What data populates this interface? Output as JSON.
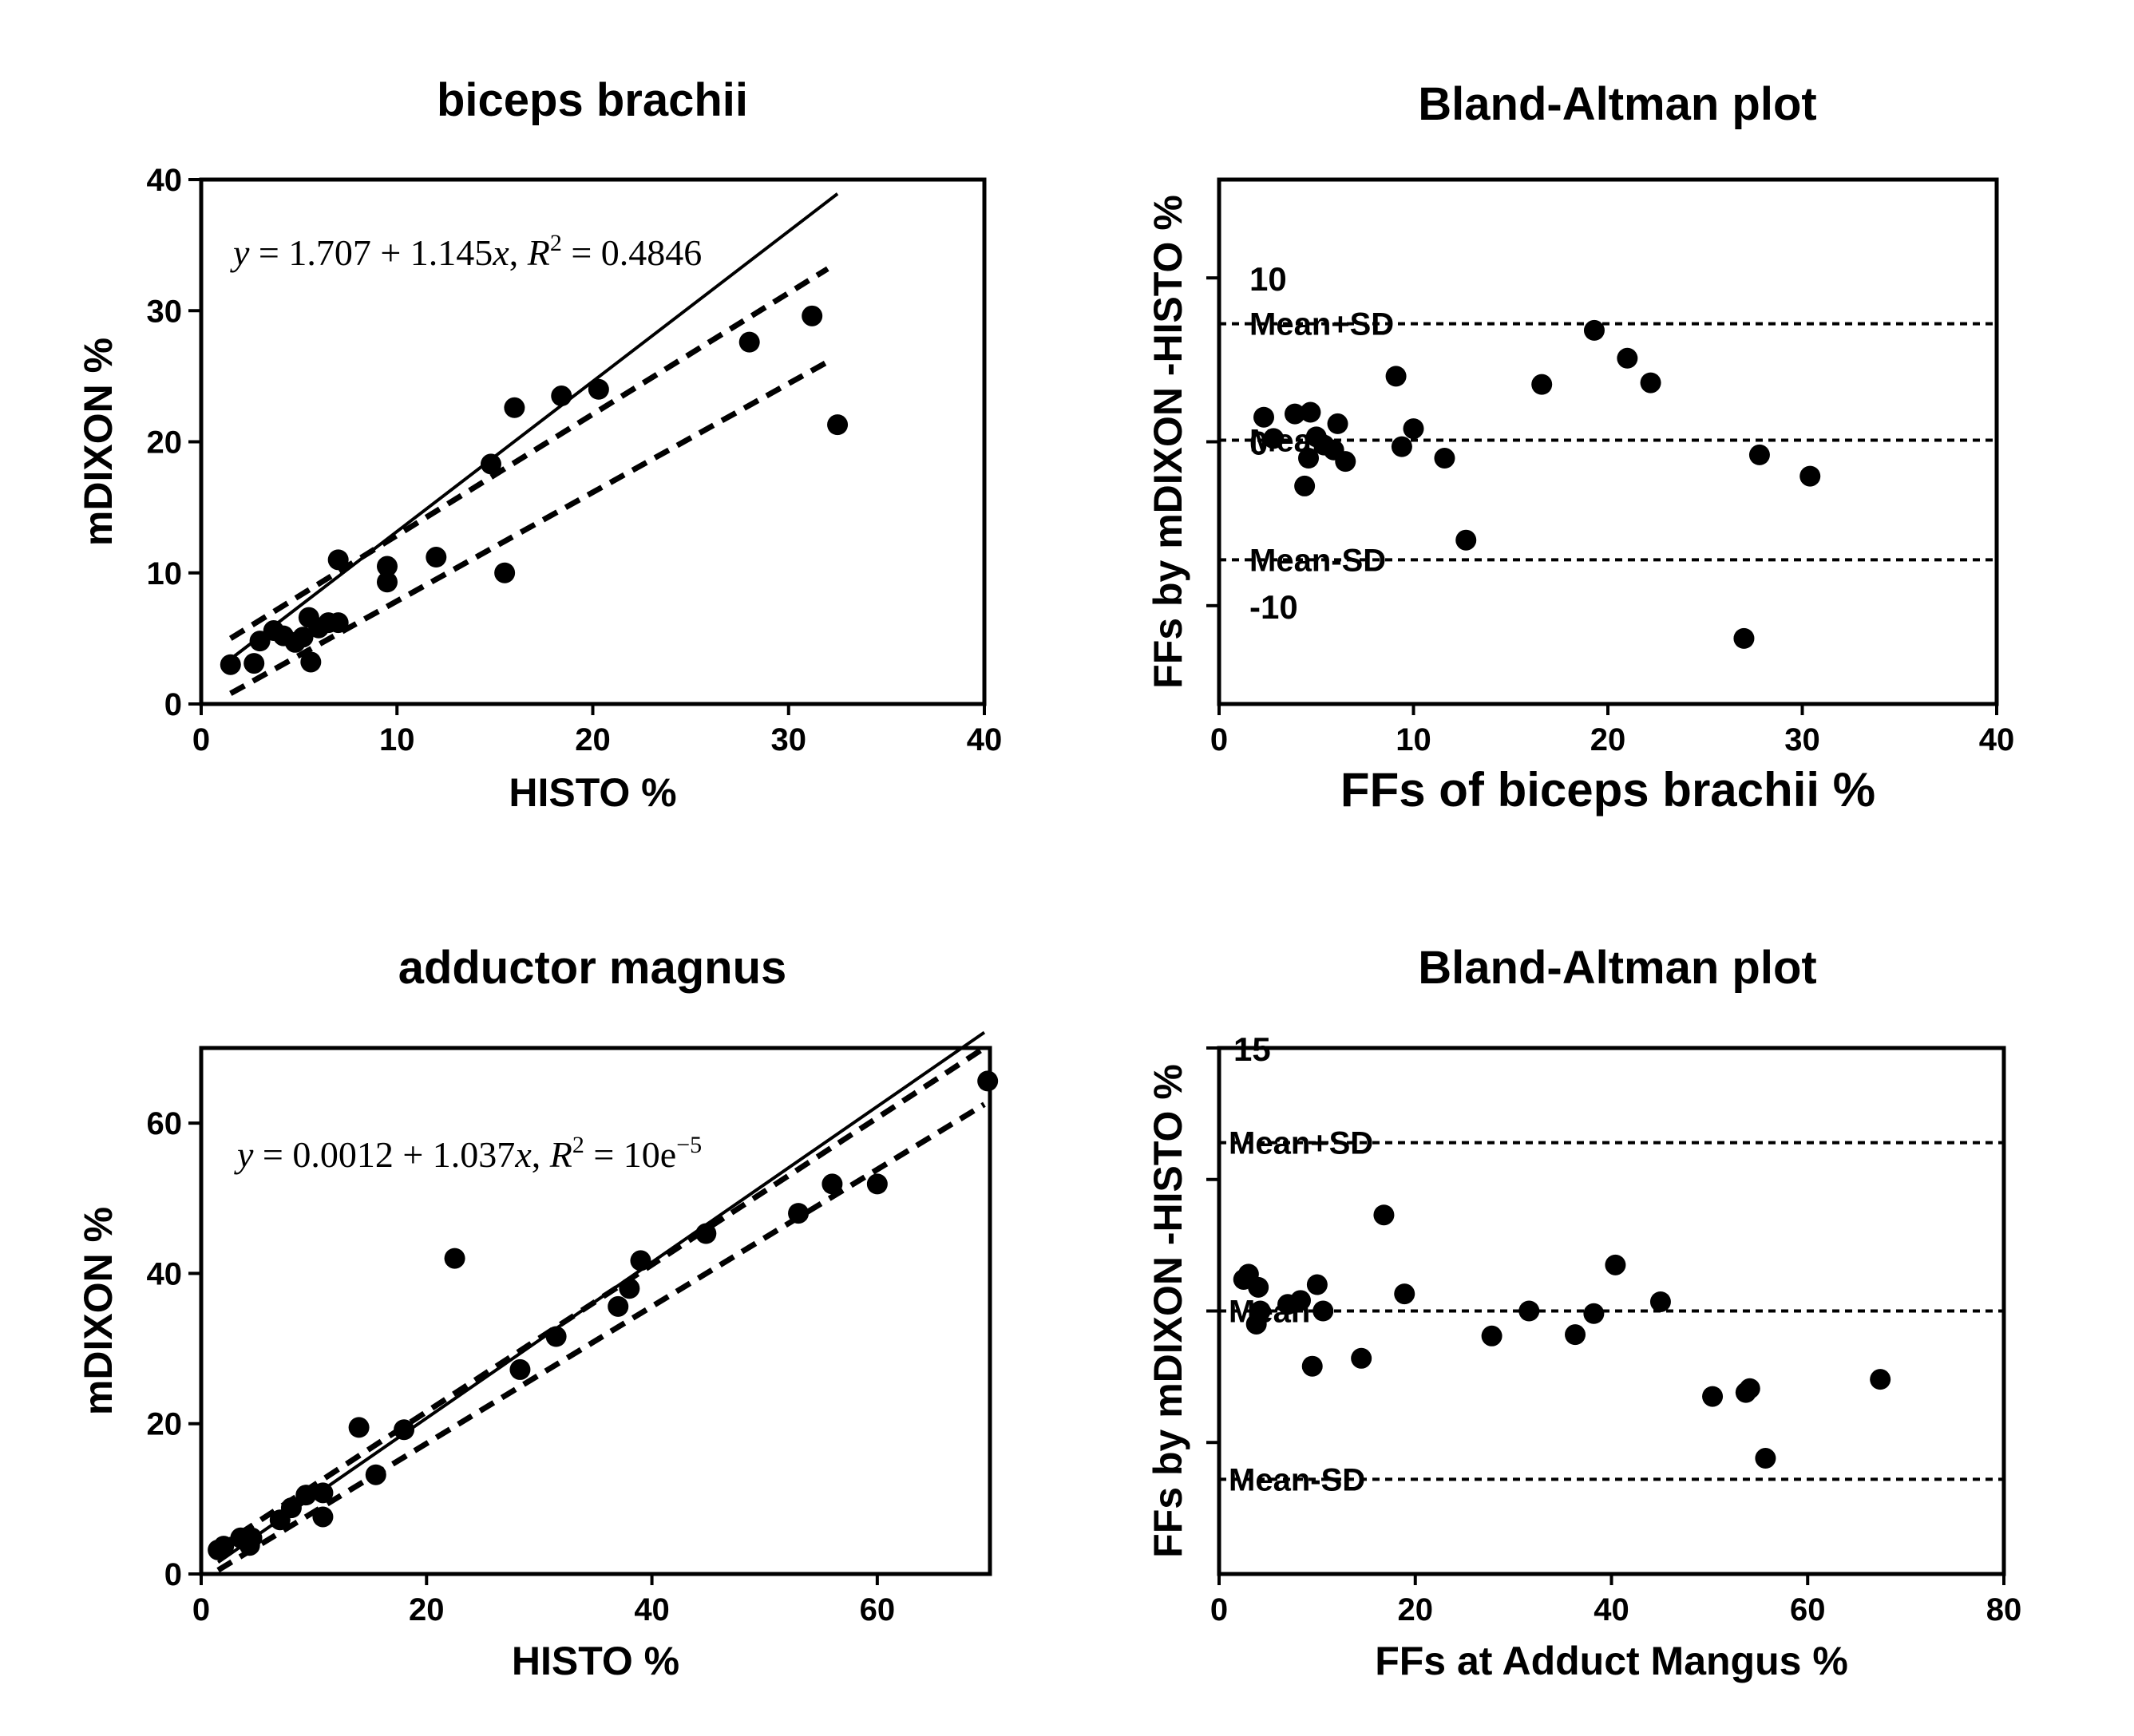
{
  "chart_data": [
    {
      "type": "scatter",
      "title": "biceps brachii",
      "xlabel": "HISTO %",
      "ylabel": "mDIXON %",
      "xlim": [
        0,
        40
      ],
      "ylim": [
        0,
        40
      ],
      "xticks": [
        0,
        10,
        20,
        30,
        40
      ],
      "yticks": [
        0,
        10,
        20,
        30,
        40
      ],
      "equation": {
        "lhs": "y",
        "rhs": " = 1.707 + 1.145",
        "var": "x",
        "comma": ", ",
        "r": "R",
        "sup": "2",
        "tail": " = 0.4846"
      },
      "fit": {
        "intercept": 1.707,
        "slope": 1.145,
        "x_range": [
          1.5,
          32.5
        ]
      },
      "ci_upper": [
        [
          1.5,
          5.0
        ],
        [
          32,
          33.2
        ]
      ],
      "ci_lower": [
        [
          1.5,
          0.8
        ],
        [
          32,
          26.1
        ]
      ],
      "points": [
        [
          1.5,
          3.0
        ],
        [
          2.7,
          3.1
        ],
        [
          3.0,
          4.8
        ],
        [
          3.7,
          5.6
        ],
        [
          4.2,
          5.2
        ],
        [
          4.8,
          4.7
        ],
        [
          5.2,
          5.1
        ],
        [
          5.5,
          6.6
        ],
        [
          5.6,
          3.2
        ],
        [
          6.0,
          5.8
        ],
        [
          6.5,
          6.2
        ],
        [
          7.0,
          6.2
        ],
        [
          7.0,
          11.0
        ],
        [
          9.5,
          10.5
        ],
        [
          9.5,
          9.3
        ],
        [
          12.0,
          11.2
        ],
        [
          14.8,
          18.3
        ],
        [
          15.5,
          10.0
        ],
        [
          16.0,
          22.6
        ],
        [
          18.4,
          23.5
        ],
        [
          20.3,
          24.0
        ],
        [
          28.0,
          27.6
        ],
        [
          31.2,
          29.6
        ],
        [
          32.5,
          21.3
        ]
      ]
    },
    {
      "type": "scatter",
      "title": "Bland-Altman plot",
      "xlabel": "FFs of biceps brachii %",
      "ylabel": "FFs by mDIXON -HISTO %",
      "xlim": [
        0,
        40
      ],
      "ylim": [
        -16,
        16
      ],
      "xticks": [
        0,
        10,
        20,
        30,
        40
      ],
      "yticks": [
        -10,
        0,
        10
      ],
      "ytick_labels": {
        "top": "10",
        "bottom": "-10",
        "zero": "0"
      },
      "lines": {
        "mean_plus_sd": 7.2,
        "mean": 0.1,
        "mean_minus_sd": -7.2
      },
      "line_labels": {
        "mean_plus_sd": "Mean+SD",
        "mean": "Mean",
        "mean_minus_sd": "Mean-SD"
      },
      "points": [
        [
          2.3,
          1.5
        ],
        [
          2.8,
          0.2
        ],
        [
          3.9,
          1.7
        ],
        [
          4.4,
          -2.7
        ],
        [
          4.6,
          -1.0
        ],
        [
          4.7,
          1.8
        ],
        [
          5.0,
          0.3
        ],
        [
          5.4,
          -0.2
        ],
        [
          5.9,
          -0.5
        ],
        [
          6.1,
          1.1
        ],
        [
          6.5,
          -1.2
        ],
        [
          9.1,
          4.0
        ],
        [
          9.4,
          -0.3
        ],
        [
          10.0,
          0.8
        ],
        [
          11.6,
          -1.0
        ],
        [
          12.7,
          -6.0
        ],
        [
          16.6,
          3.5
        ],
        [
          19.3,
          6.8
        ],
        [
          21.0,
          5.1
        ],
        [
          22.2,
          3.6
        ],
        [
          27.0,
          -12.0
        ],
        [
          27.8,
          -0.8
        ],
        [
          30.4,
          -2.1
        ]
      ]
    },
    {
      "type": "scatter",
      "title": "adductor magnus",
      "xlabel": "HISTO %",
      "ylabel": "mDIXON %",
      "xlim": [
        0,
        70
      ],
      "ylim": [
        0,
        70
      ],
      "xticks": [
        0,
        20,
        40,
        60
      ],
      "yticks": [
        0,
        20,
        40,
        60
      ],
      "equation": {
        "lhs": "y",
        "rhs": " = 0.0012 + 1.037",
        "var": "x",
        "comma": ", ",
        "r": "R",
        "sup": "2",
        "tail": " = 10e",
        "exp": "−5"
      },
      "fit": {
        "intercept": 0.0012,
        "slope": 1.037,
        "x_range": [
          1.5,
          69.5
        ]
      },
      "ci_upper": [
        [
          1.5,
          3.5
        ],
        [
          69.5,
          70.0
        ]
      ],
      "ci_lower": [
        [
          1.5,
          0.5
        ],
        [
          69.5,
          62.5
        ]
      ],
      "points": [
        [
          1.5,
          3.2
        ],
        [
          2.0,
          3.7
        ],
        [
          3.5,
          4.8
        ],
        [
          4.3,
          3.8
        ],
        [
          4.5,
          4.8
        ],
        [
          7.0,
          7.2
        ],
        [
          8.0,
          8.8
        ],
        [
          9.3,
          10.5
        ],
        [
          10.8,
          7.6
        ],
        [
          10.8,
          10.8
        ],
        [
          14.0,
          19.5
        ],
        [
          15.5,
          13.2
        ],
        [
          18.0,
          19.2
        ],
        [
          22.5,
          42.0
        ],
        [
          28.3,
          27.2
        ],
        [
          31.5,
          31.6
        ],
        [
          37.0,
          35.6
        ],
        [
          38.0,
          38.0
        ],
        [
          39.0,
          41.7
        ],
        [
          44.8,
          45.3
        ],
        [
          53.0,
          48.0
        ],
        [
          56.0,
          51.9
        ],
        [
          60.0,
          51.9
        ],
        [
          69.8,
          65.6
        ]
      ]
    },
    {
      "type": "scatter",
      "title": "Bland-Altman plot",
      "xlabel": "FFs at Adduct Mangus %",
      "ylabel": "FFs by mDIXON -HISTO %",
      "xlim": [
        0,
        80
      ],
      "ylim": [
        -20,
        20
      ],
      "xticks": [
        0,
        20,
        40,
        60,
        80
      ],
      "yticks": [
        -10,
        0,
        10,
        20
      ],
      "ytick_labels": {
        "top": "15"
      },
      "lines": {
        "mean_plus_sd": 12.8,
        "mean": 0.0,
        "mean_minus_sd": -12.8
      },
      "line_labels": {
        "mean_plus_sd": "Mean+SD",
        "mean": "Mean",
        "mean_minus_sd": "Mean-SD"
      },
      "points": [
        [
          2.5,
          2.4
        ],
        [
          3.0,
          2.8
        ],
        [
          3.8,
          -1.0
        ],
        [
          4.0,
          1.8
        ],
        [
          4.2,
          0.0
        ],
        [
          7.0,
          0.5
        ],
        [
          8.3,
          0.8
        ],
        [
          9.5,
          -4.2
        ],
        [
          10.0,
          2.0
        ],
        [
          10.6,
          0.0
        ],
        [
          14.5,
          -3.6
        ],
        [
          16.8,
          7.3
        ],
        [
          18.9,
          1.3
        ],
        [
          27.8,
          -1.9
        ],
        [
          31.6,
          0.0
        ],
        [
          36.3,
          -1.8
        ],
        [
          38.2,
          -0.2
        ],
        [
          40.4,
          3.5
        ],
        [
          45.0,
          0.7
        ],
        [
          50.3,
          -6.5
        ],
        [
          53.7,
          -6.2
        ],
        [
          54.1,
          -5.9
        ],
        [
          55.7,
          -11.2
        ],
        [
          67.4,
          -5.2
        ]
      ]
    }
  ]
}
